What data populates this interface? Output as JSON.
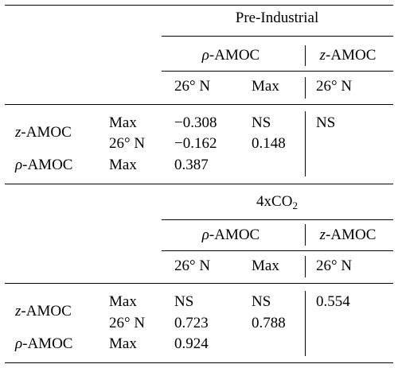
{
  "rho_symbol": "ρ",
  "z_symbol": "z",
  "amoc_suffix": "-AMOC",
  "sections": [
    {
      "title": "Pre-Industrial",
      "header_group1": "ρ-AMOC",
      "header_group2": "z-AMOC",
      "col_26n": "26° N",
      "col_max": "Max",
      "col_z_26n": "26° N",
      "rows": {
        "z_label": "z-AMOC",
        "rho_label": "ρ-AMOC",
        "r1_sub": "Max",
        "r1_vals": [
          "−0.308",
          "NS",
          "NS"
        ],
        "r2_sub": "26° N",
        "r2_vals": [
          "−0.162",
          "0.148"
        ],
        "r3_sub": "Max",
        "r3_vals": [
          "0.387"
        ]
      }
    },
    {
      "title_main": "4xCO",
      "title_sub": "2",
      "header_group1": "ρ-AMOC",
      "header_group2": "z-AMOC",
      "col_26n": "26° N",
      "col_max": "Max",
      "col_z_26n": "26° N",
      "rows": {
        "r1_sub": "Max",
        "r1_vals": [
          "NS",
          "NS",
          "0.554"
        ],
        "r2_sub": "26° N",
        "r2_vals": [
          "0.723",
          "0.788"
        ],
        "r3_sub": "Max",
        "r3_vals": [
          "0.924"
        ]
      }
    }
  ]
}
